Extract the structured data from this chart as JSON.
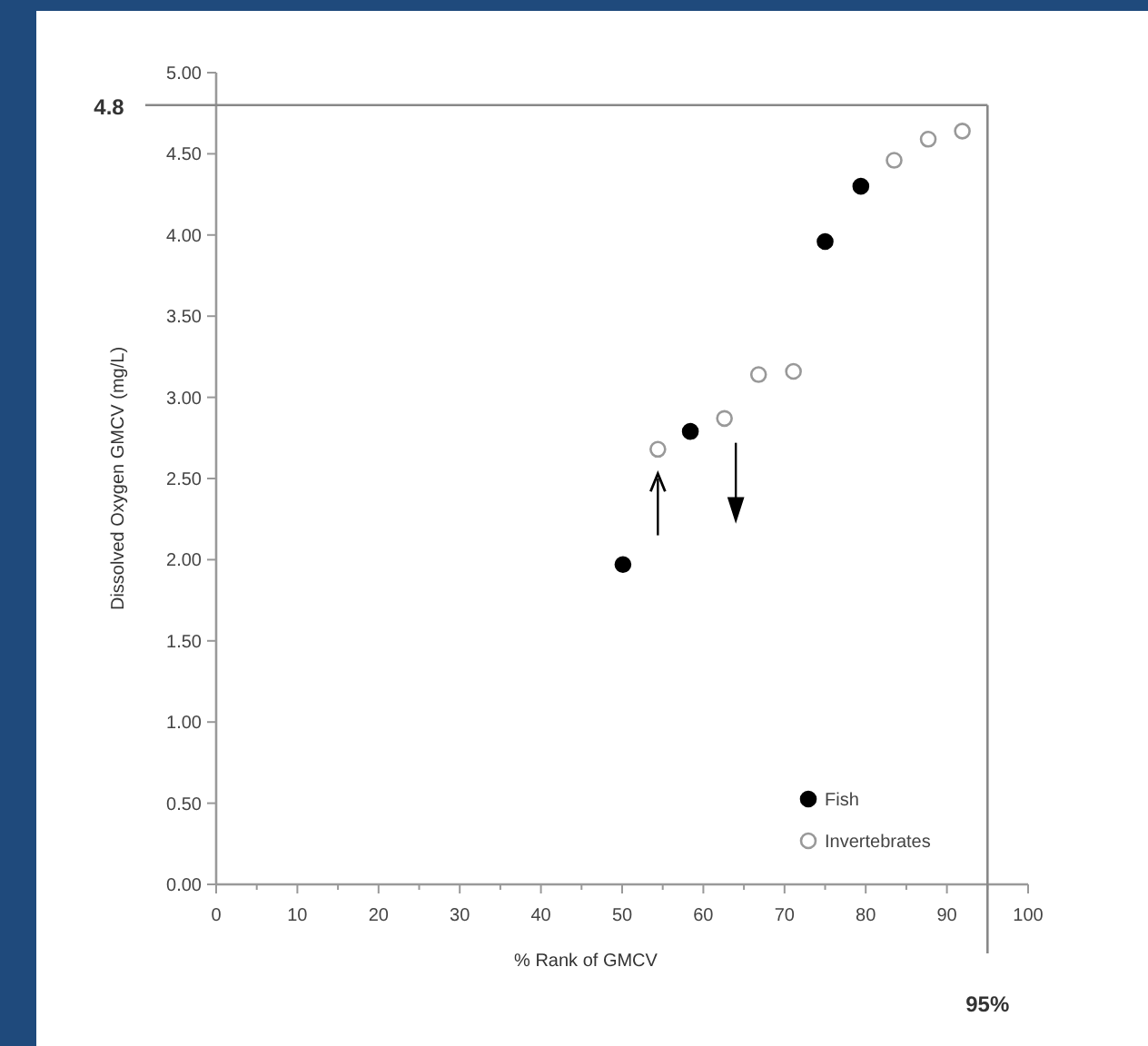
{
  "chart_data": {
    "type": "scatter",
    "xlabel": "% Rank of GMCV",
    "ylabel": "Dissolved Oxygen GMCV (mg/L)",
    "xlim": [
      0,
      100
    ],
    "xticks": [
      0,
      10,
      20,
      30,
      40,
      50,
      60,
      70,
      80,
      90,
      100
    ],
    "ylim": [
      0,
      5
    ],
    "yticks": [
      {
        "value": 0,
        "label": "0.00"
      },
      {
        "value": 0.5,
        "label": "0.50"
      },
      {
        "value": 1,
        "label": "1.00"
      },
      {
        "value": 1.5,
        "label": "1.50"
      },
      {
        "value": 2,
        "label": "2.00"
      },
      {
        "value": 2.5,
        "label": "2.50"
      },
      {
        "value": 3,
        "label": "3.00"
      },
      {
        "value": 3.5,
        "label": "3.50"
      },
      {
        "value": 4,
        "label": "4.00"
      },
      {
        "value": 4.5,
        "label": "4.50"
      },
      {
        "value": 5,
        "label": "5.00"
      }
    ],
    "series": [
      {
        "name": "Fish",
        "color": "#000000",
        "x": [
          50.1,
          58.4,
          75.0,
          79.4
        ],
        "values": [
          1.97,
          2.79,
          3.96,
          4.3
        ]
      },
      {
        "name": "Invertebrates",
        "color": "#999999",
        "x": [
          54.4,
          62.6,
          66.8,
          71.1,
          83.5,
          87.7,
          91.9
        ],
        "values": [
          2.68,
          2.87,
          3.14,
          3.16,
          4.46,
          4.59,
          4.64
        ]
      }
    ],
    "ref_lines": [
      {
        "axis": "y",
        "value": 4.8,
        "label": "4.8"
      },
      {
        "axis": "x",
        "value": 95,
        "label": "95%"
      }
    ],
    "marker": "circle",
    "legend": "bottom right",
    "grid": false
  }
}
